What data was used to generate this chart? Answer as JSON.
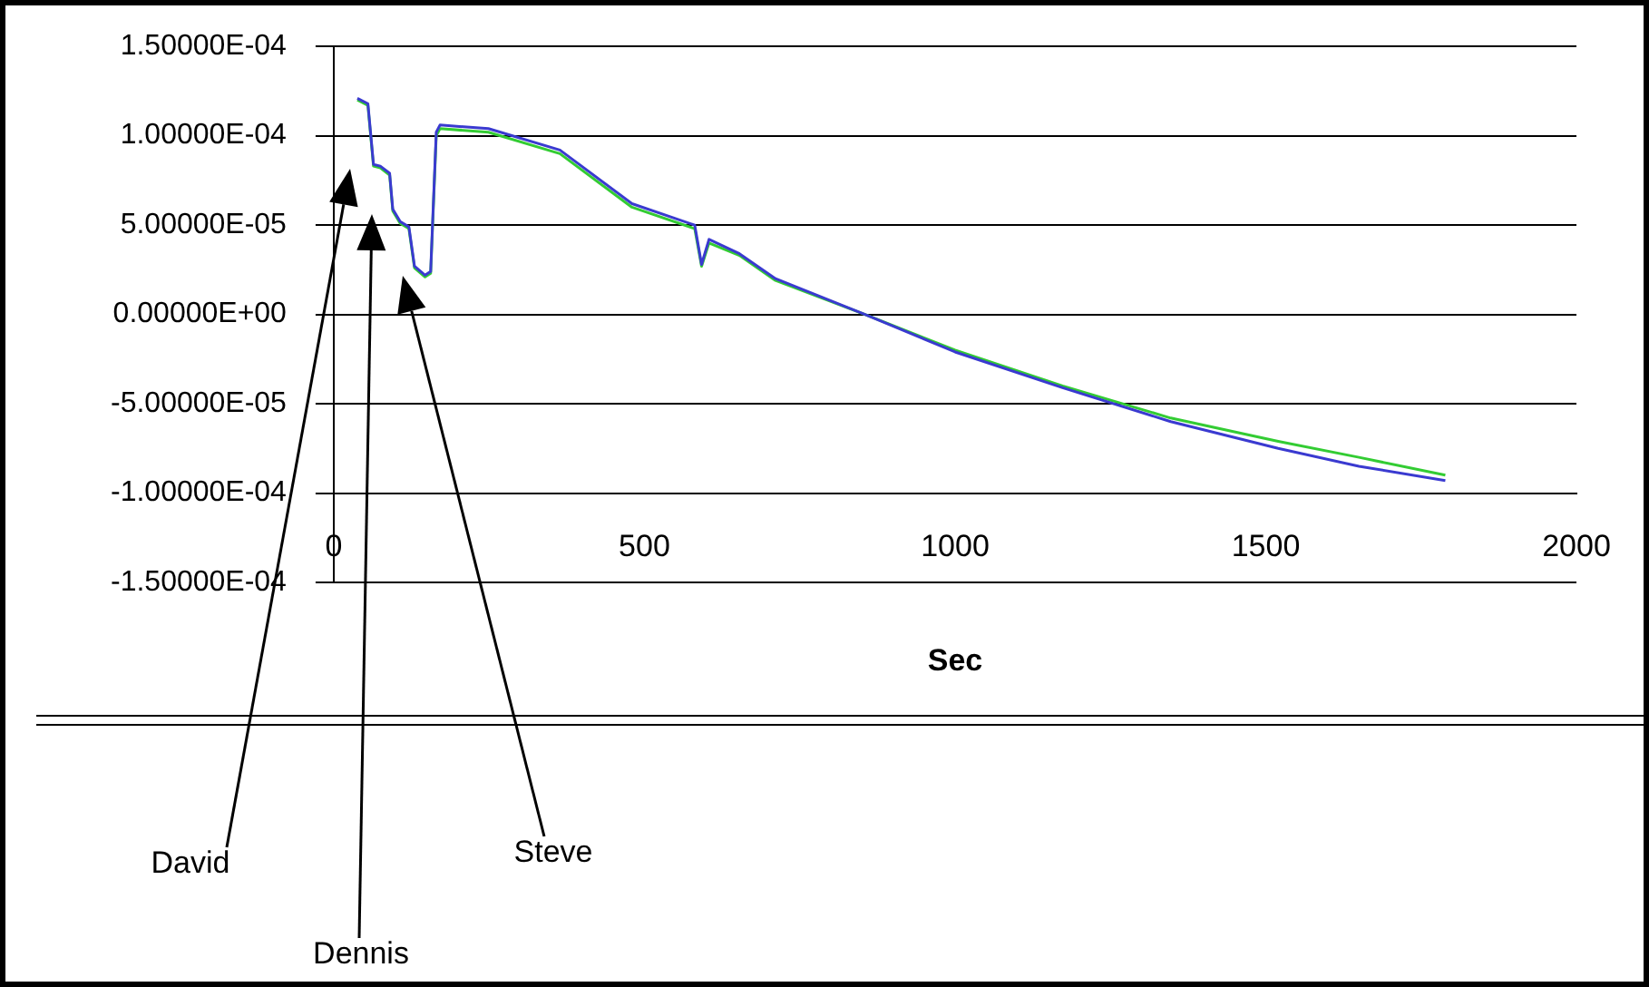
{
  "chart_data": {
    "type": "line",
    "xlabel": "Sec",
    "xlim": [
      0,
      2000
    ],
    "xticks": [
      0,
      500,
      1000,
      1500,
      2000
    ],
    "ylim": [
      -0.00015,
      0.00015
    ],
    "yticks": [
      {
        "value": -0.00015,
        "label": "-1.50000E-04"
      },
      {
        "value": -0.0001,
        "label": "-1.00000E-04"
      },
      {
        "value": -5e-05,
        "label": "-5.00000E-05"
      },
      {
        "value": 0,
        "label": "0.00000E+00"
      },
      {
        "value": 5e-05,
        "label": "5.00000E-05"
      },
      {
        "value": 0.0001,
        "label": "1.00000E-04"
      },
      {
        "value": 0.00015,
        "label": "1.50000E-04"
      }
    ],
    "grid": "y",
    "marker": "none",
    "series": [
      {
        "color": "#3a3ad0",
        "x": [
          38,
          55,
          64,
          75,
          90,
          95,
          107,
          121,
          130,
          147,
          156,
          165,
          171,
          249,
          364,
          480,
          581,
          592,
          604,
          653,
          711,
          855,
          1000,
          1173,
          1347,
          1520,
          1650,
          1789
        ],
        "values": [
          0.000121,
          0.000118,
          8.4e-05,
          8.3e-05,
          7.9e-05,
          5.9e-05,
          5.2e-05,
          4.9e-05,
          2.7e-05,
          2.2e-05,
          2.4e-05,
          0.000102,
          0.000106,
          0.000104,
          9.2e-05,
          6.2e-05,
          5e-05,
          2.8e-05,
          4.2e-05,
          3.4e-05,
          2e-05,
          0,
          -2.1e-05,
          -4.1e-05,
          -6e-05,
          -7.5e-05,
          -8.5e-05,
          -9.3e-05
        ]
      },
      {
        "color": "#33cc33",
        "x": [
          38,
          55,
          64,
          75,
          90,
          95,
          107,
          121,
          130,
          147,
          156,
          165,
          171,
          249,
          364,
          480,
          581,
          592,
          604,
          653,
          711,
          855,
          1000,
          1173,
          1347,
          1520,
          1650,
          1789
        ],
        "values": [
          0.00012,
          0.000117,
          8.3e-05,
          8.2e-05,
          7.8e-05,
          5.8e-05,
          5.1e-05,
          4.8e-05,
          2.6e-05,
          2.1e-05,
          2.3e-05,
          0.0001,
          0.000104,
          0.000102,
          9e-05,
          6e-05,
          4.8e-05,
          2.7e-05,
          4e-05,
          3.3e-05,
          1.9e-05,
          0,
          -2e-05,
          -4e-05,
          -5.8e-05,
          -7.1e-05,
          -8e-05,
          -9e-05
        ]
      }
    ],
    "annotations": [
      "David",
      "Dennis",
      "Steve"
    ]
  }
}
